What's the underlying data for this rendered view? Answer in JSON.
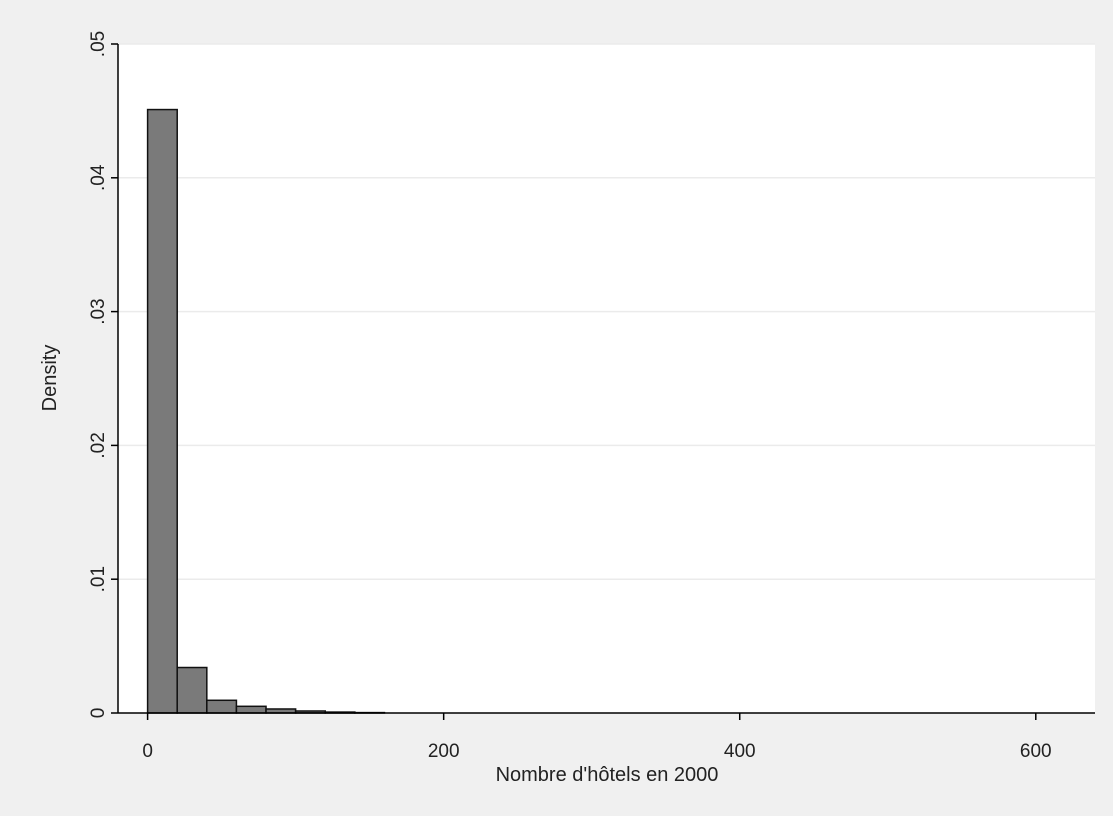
{
  "chart_data": {
    "type": "bar",
    "xlabel": "Nombre d'hôtels en 2000",
    "ylabel": "Density",
    "xlim": [
      -20,
      640
    ],
    "ylim": [
      0,
      0.05
    ],
    "xticks": [
      0,
      200,
      400,
      600
    ],
    "xtick_labels": [
      "0",
      "200",
      "400",
      "600"
    ],
    "yticks": [
      0,
      0.01,
      0.02,
      0.03,
      0.04,
      0.05
    ],
    "ytick_labels": [
      "0",
      ".01",
      ".02",
      ".03",
      ".04",
      ".05"
    ],
    "grid": true,
    "bin_width": 20,
    "bins": [
      {
        "x0": 0,
        "x1": 20,
        "density": 0.0451
      },
      {
        "x0": 20,
        "x1": 40,
        "density": 0.0034
      },
      {
        "x0": 40,
        "x1": 60,
        "density": 0.00095
      },
      {
        "x0": 60,
        "x1": 80,
        "density": 0.0005
      },
      {
        "x0": 80,
        "x1": 100,
        "density": 0.0003
      },
      {
        "x0": 100,
        "x1": 120,
        "density": 0.00015
      },
      {
        "x0": 120,
        "x1": 140,
        "density": 7e-05
      },
      {
        "x0": 140,
        "x1": 160,
        "density": 3e-05
      }
    ],
    "colors": {
      "outer_background": "#f0f0f0",
      "plot_background": "#ffffff",
      "bar_fill": "#7a7a7a",
      "bar_edge": "#111111",
      "grid": "#ebebeb",
      "axis": "#000000"
    }
  }
}
